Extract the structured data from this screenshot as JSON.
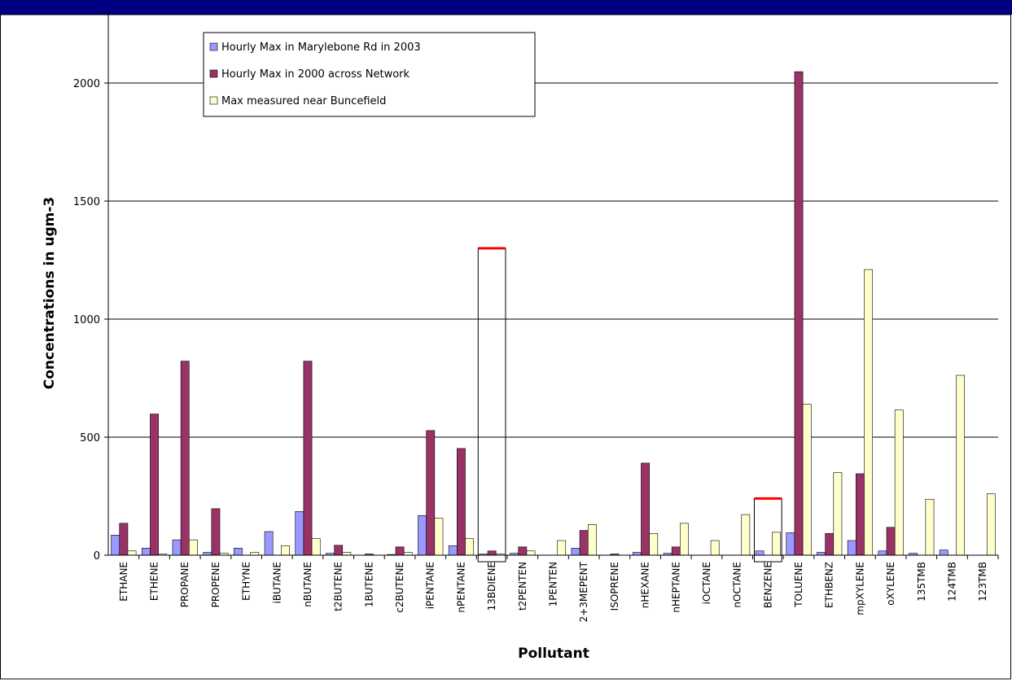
{
  "chart_data": {
    "type": "bar",
    "y_label": "Concentrations in ugm-3",
    "x_label": "Pollutant",
    "categories": [
      "ETHANE",
      "ETHENE",
      "PROPANE",
      "PROPENE",
      "ETHYNE",
      "iBUTANE",
      "nBUTANE",
      "t2BUTENE",
      "1BUTENE",
      "c2BUTENE",
      "iPENTANE",
      "nPENTANE",
      "13BDIENE",
      "t2PENTEN",
      "1PENTEN",
      "2+3MEPENT",
      "ISOPRENE",
      "nHEXANE",
      "nHEPTANE",
      "iOCTANE",
      "nOCTANE",
      "BENZENE",
      "TOLUENE",
      "ETHBENZ",
      "mpXYLENE",
      "oXYLENE",
      "135TMB",
      "124TMB",
      "123TMB"
    ],
    "series": [
      {
        "name": "Hourly Max in Marylebone Rd in 2003",
        "color": "#9999ff",
        "values": [
          85,
          30,
          65,
          12,
          30,
          100,
          185,
          8,
          0,
          3,
          168,
          40,
          5,
          8,
          0,
          30,
          0,
          12,
          8,
          0,
          0,
          18,
          95,
          12,
          62,
          18,
          8,
          22,
          0
        ]
      },
      {
        "name": "Hourly Max in 2000 across Network",
        "color": "#993366",
        "values": [
          135,
          598,
          822,
          197,
          0,
          0,
          822,
          42,
          5,
          35,
          528,
          452,
          18,
          35,
          0,
          105,
          5,
          390,
          35,
          0,
          0,
          0,
          2048,
          92,
          345,
          118,
          0,
          0,
          0
        ]
      },
      {
        "name": "Max measured near Buncefield",
        "color": "#ffffcc",
        "values": [
          18,
          5,
          65,
          8,
          12,
          40,
          70,
          12,
          0,
          12,
          157,
          70,
          5,
          18,
          62,
          130,
          0,
          92,
          135,
          62,
          172,
          97,
          640,
          350,
          1210,
          615,
          237,
          762,
          260
        ]
      }
    ],
    "reference_marks": [
      {
        "category": "13BDIENE",
        "value": 1300,
        "color": "#ff0000"
      },
      {
        "category": "BENZENE",
        "value": 240,
        "color": "#ff0000"
      }
    ],
    "ylim": [
      0,
      2300
    ],
    "yticks": [
      0,
      500,
      1000,
      1500,
      2000
    ],
    "grid": true,
    "legend": "upper left"
  }
}
